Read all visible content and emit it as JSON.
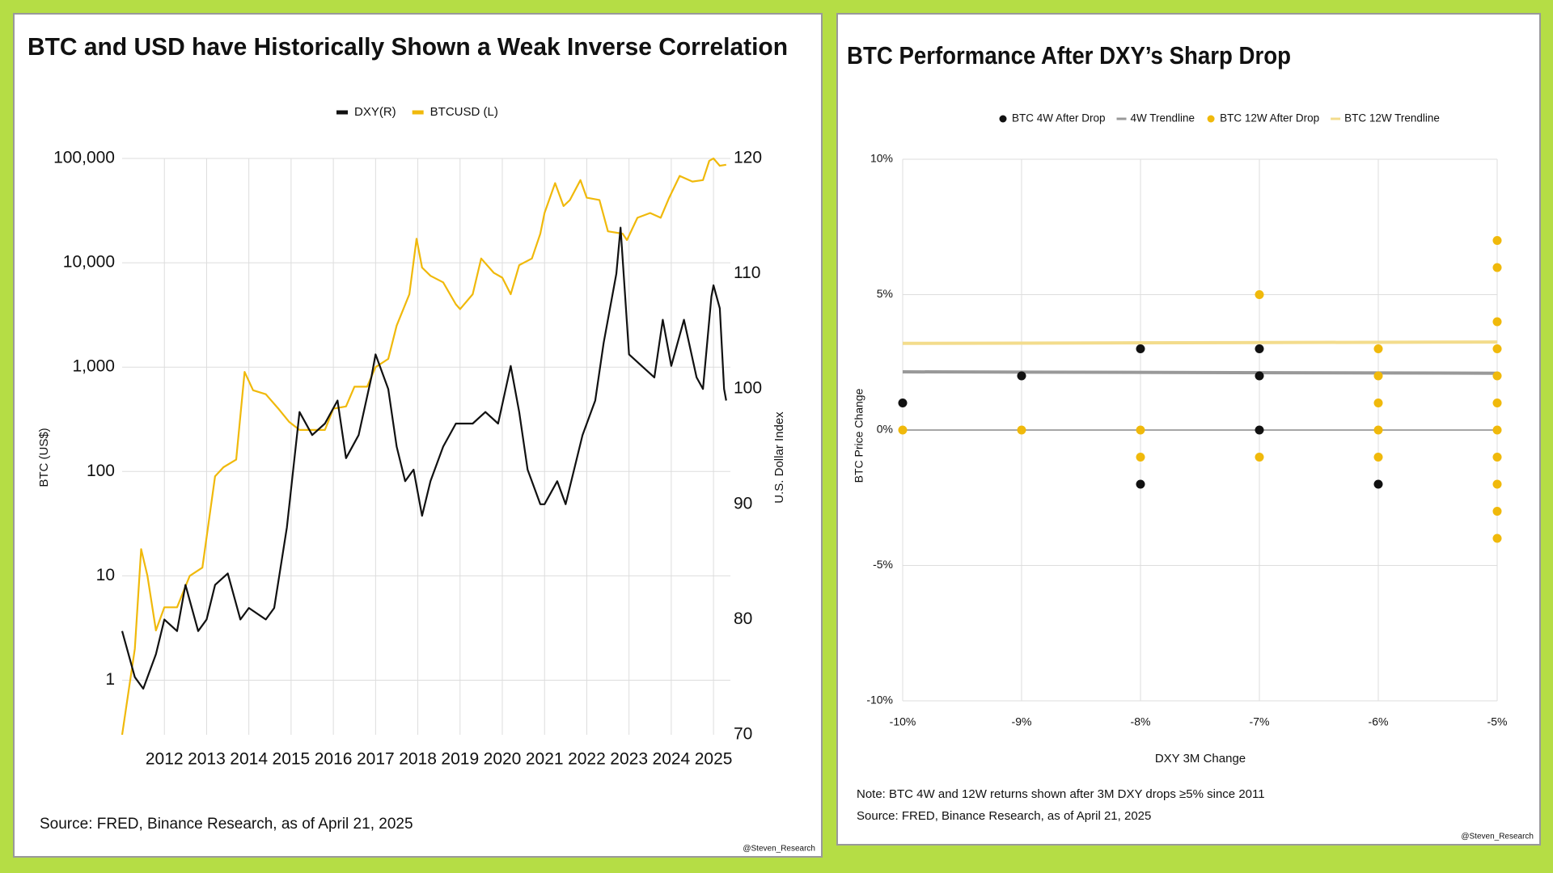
{
  "chart_data": [
    {
      "type": "line",
      "title": "BTC and USD have Historically Shown a Weak Inverse Correlation",
      "ylabel": "BTC (US$)",
      "y2label": "U.S. Dollar Index",
      "source": "Source: FRED, Binance Research, as of April 21, 2025",
      "watermark": "@Steven_Research",
      "xlim": [
        2011,
        2025.4
      ],
      "xticks": [
        2012,
        2013,
        2014,
        2015,
        2016,
        2017,
        2018,
        2019,
        2020,
        2021,
        2022,
        2023,
        2024,
        2025
      ],
      "ylim": [
        0.3,
        100000
      ],
      "ylog": true,
      "yticks": [
        1,
        10,
        100,
        {
          "value": 1000,
          "label": "1,000"
        },
        {
          "value": 10000,
          "label": "10,000"
        },
        {
          "value": 100000,
          "label": "100,000"
        }
      ],
      "y2lim": [
        70,
        120
      ],
      "y2ticks": [
        70,
        80,
        90,
        100,
        110,
        120
      ],
      "grid": true,
      "series": [
        {
          "name": "DXY(R)",
          "color": "#111111",
          "axis": "y2",
          "x": [
            2011.0,
            2011.3,
            2011.5,
            2011.8,
            2012.0,
            2012.3,
            2012.5,
            2012.8,
            2013.0,
            2013.2,
            2013.5,
            2013.8,
            2014.0,
            2014.4,
            2014.6,
            2014.9,
            2015.2,
            2015.5,
            2015.8,
            2016.1,
            2016.3,
            2016.6,
            2016.9,
            2017.0,
            2017.3,
            2017.5,
            2017.7,
            2017.9,
            2018.1,
            2018.3,
            2018.6,
            2018.9,
            2019.3,
            2019.6,
            2019.9,
            2020.2,
            2020.4,
            2020.6,
            2020.9,
            2021.0,
            2021.3,
            2021.5,
            2021.9,
            2022.2,
            2022.4,
            2022.7,
            2022.8,
            2023.0,
            2023.3,
            2023.6,
            2023.8,
            2024.0,
            2024.3,
            2024.6,
            2024.75,
            2024.95,
            2025.0,
            2025.15,
            2025.25,
            2025.3
          ],
          "values": [
            79,
            75,
            74,
            77,
            80,
            79,
            83,
            79,
            80,
            83,
            84,
            80,
            81,
            80,
            81,
            88,
            98,
            96,
            97,
            99,
            94,
            96,
            101,
            103,
            100,
            95,
            92,
            93,
            89,
            92,
            95,
            97,
            97,
            98,
            97,
            102,
            98,
            93,
            90,
            90,
            92,
            90,
            96,
            99,
            104,
            110,
            114,
            103,
            102,
            101,
            106,
            102,
            106,
            101,
            100,
            108,
            109,
            107,
            100,
            99
          ]
        },
        {
          "name": "BTCUSD (L)",
          "color": "#f0b90b",
          "x": [
            2011.0,
            2011.3,
            2011.45,
            2011.6,
            2011.8,
            2012.0,
            2012.3,
            2012.6,
            2012.9,
            2013.2,
            2013.4,
            2013.7,
            2013.9,
            2014.1,
            2014.4,
            2014.7,
            2014.95,
            2015.2,
            2015.5,
            2015.8,
            2016.0,
            2016.3,
            2016.5,
            2016.8,
            2017.0,
            2017.3,
            2017.5,
            2017.8,
            2017.97,
            2018.1,
            2018.3,
            2018.6,
            2018.9,
            2019.0,
            2019.3,
            2019.5,
            2019.8,
            2020.0,
            2020.2,
            2020.4,
            2020.7,
            2020.9,
            2021.0,
            2021.25,
            2021.45,
            2021.6,
            2021.85,
            2022.0,
            2022.3,
            2022.5,
            2022.85,
            2022.95,
            2023.2,
            2023.5,
            2023.75,
            2023.95,
            2024.2,
            2024.5,
            2024.75,
            2024.9,
            2025.0,
            2025.15,
            2025.3
          ],
          "values": [
            0.3,
            2,
            18,
            10,
            3,
            5,
            5,
            10,
            12,
            90,
            110,
            130,
            900,
            600,
            550,
            400,
            300,
            250,
            250,
            250,
            400,
            420,
            650,
            650,
            1000,
            1200,
            2500,
            5000,
            17000,
            9000,
            7500,
            6500,
            4000,
            3600,
            5000,
            11000,
            8000,
            7200,
            5000,
            9500,
            11000,
            19000,
            30000,
            58000,
            35000,
            40000,
            62000,
            42000,
            40000,
            20000,
            19000,
            16500,
            27000,
            30000,
            27000,
            42000,
            68000,
            60000,
            62000,
            95000,
            100000,
            85000,
            87000
          ]
        }
      ]
    },
    {
      "type": "scatter",
      "title": "BTC Performance After DXY’s Sharp Drop",
      "xlabel": "DXY 3M Change",
      "ylabel": "BTC Price Change",
      "notes": [
        "Note: BTC 4W and 12W returns shown after 3M DXY drops ≥5% since 2011",
        "Source: FRED, Binance Research, as of April 21, 2025"
      ],
      "watermark": "@Steven_Research",
      "xlim": [
        -10,
        -5
      ],
      "xticks": [
        {
          "value": -10,
          "label": "-10%"
        },
        {
          "value": -9,
          "label": "-9%"
        },
        {
          "value": -8,
          "label": "-8%"
        },
        {
          "value": -7,
          "label": "-7%"
        },
        {
          "value": -6,
          "label": "-6%"
        },
        {
          "value": -5,
          "label": "-5%"
        }
      ],
      "ylim": [
        -10,
        10
      ],
      "yticks": [
        {
          "value": -10,
          "label": "-10%"
        },
        {
          "value": -5,
          "label": "-5%"
        },
        {
          "value": 0,
          "label": "0%"
        },
        {
          "value": 5,
          "label": "5%"
        },
        {
          "value": 10,
          "label": "10%"
        }
      ],
      "grid": true,
      "series": [
        {
          "name": "BTC 4W After Drop",
          "color": "#111111",
          "mode": "markers",
          "x": [
            -10,
            -9,
            -8,
            -8,
            -7,
            -7,
            -7,
            -6
          ],
          "values": [
            1,
            2,
            3,
            -2,
            3,
            2,
            0,
            -2
          ]
        },
        {
          "name": "4W Trendline",
          "color": "#999999",
          "mode": "line",
          "x": [
            -10,
            -5
          ],
          "values": [
            2.15,
            2.1
          ]
        },
        {
          "name": "BTC 12W After Drop",
          "color": "#f0b90b",
          "mode": "markers",
          "x": [
            -10,
            -9,
            -8,
            -8,
            -7,
            -7,
            -6,
            -6,
            -6,
            -6,
            -6,
            -5,
            -5,
            -5,
            -5,
            -5,
            -5,
            -5,
            -5,
            -5,
            -5,
            -5
          ],
          "values": [
            0,
            0,
            0,
            -1,
            5,
            -1,
            3,
            2,
            1,
            0,
            -1,
            7,
            6,
            4,
            3,
            2,
            1,
            0,
            -1,
            -2,
            -3,
            -4
          ]
        },
        {
          "name": "BTC 12W Trendline",
          "color": "#f3dc8c",
          "mode": "line",
          "x": [
            -10,
            -5
          ],
          "values": [
            3.2,
            3.25
          ]
        }
      ]
    }
  ]
}
